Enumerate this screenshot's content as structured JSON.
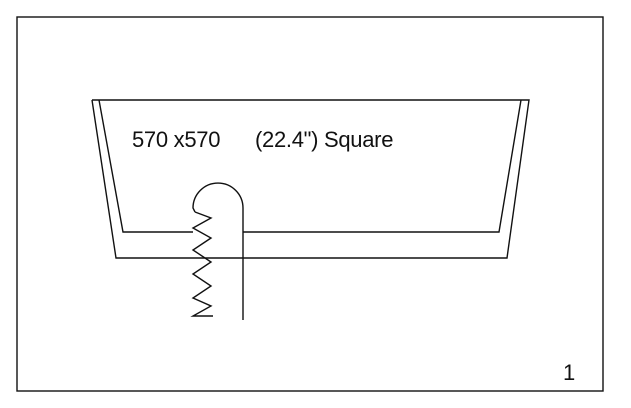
{
  "drawing": {
    "label": "570 x570      (22.4\") Square",
    "sheet_number": "1"
  },
  "colors": {
    "line": "#111111",
    "background": "#ffffff"
  }
}
